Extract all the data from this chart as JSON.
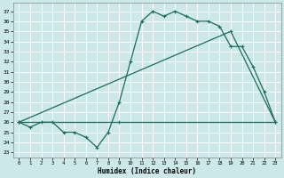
{
  "title": "",
  "xlabel": "Humidex (Indice chaleur)",
  "xlim": [
    -0.5,
    23.5
  ],
  "ylim": [
    22.5,
    37.8
  ],
  "yticks": [
    23,
    24,
    25,
    26,
    27,
    28,
    29,
    30,
    31,
    32,
    33,
    34,
    35,
    36,
    37
  ],
  "xticks": [
    0,
    1,
    2,
    3,
    4,
    5,
    6,
    7,
    8,
    9,
    10,
    11,
    12,
    13,
    14,
    15,
    16,
    17,
    18,
    19,
    20,
    21,
    22,
    23
  ],
  "color": "#1a6b5a",
  "bg_color": "#cce8e8",
  "grid_color": "#ffffff",
  "line1_x": [
    0,
    1,
    2,
    3,
    4,
    5,
    6,
    7,
    8,
    9,
    10,
    11,
    12,
    13,
    14,
    15,
    16,
    17,
    18,
    19,
    20,
    21,
    22,
    23
  ],
  "line1_y": [
    26.0,
    25.5,
    26.0,
    26.0,
    25.0,
    25.0,
    24.5,
    23.5,
    25.0,
    28.0,
    32.0,
    36.0,
    37.0,
    36.5,
    37.0,
    36.5,
    36.0,
    36.0,
    35.5,
    33.5,
    33.5,
    31.5,
    29.0,
    26.0
  ],
  "line2_x": [
    0,
    9,
    23
  ],
  "line2_y": [
    26.0,
    26.0,
    26.0
  ],
  "line3_x": [
    0,
    19,
    23
  ],
  "line3_y": [
    26.0,
    35.0,
    26.0
  ]
}
